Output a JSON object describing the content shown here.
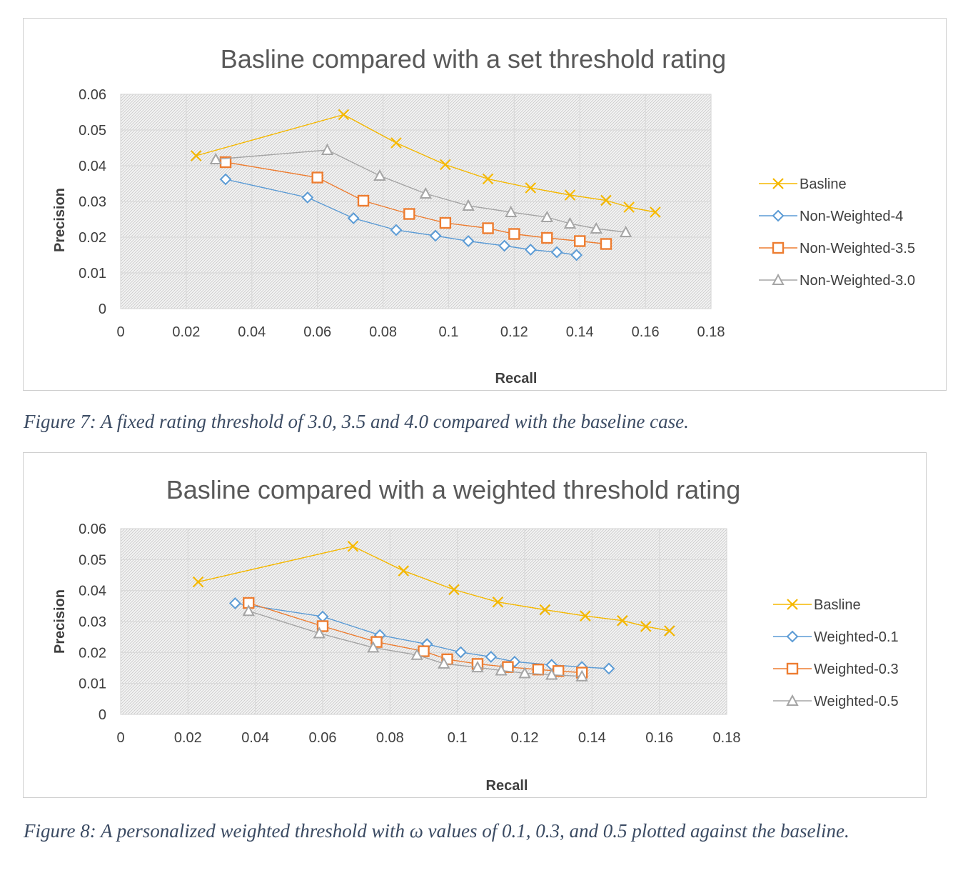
{
  "charts": [
    {
      "chart_data": {
        "type": "scatter",
        "title": "Basline compared with a set threshold rating",
        "xlabel": "Recall",
        "ylabel": "Precision",
        "xlim": [
          0,
          0.18
        ],
        "ylim": [
          0,
          0.06
        ],
        "xticks": [
          "0",
          "0.02",
          "0.04",
          "0.06",
          "0.08",
          "0.1",
          "0.12",
          "0.14",
          "0.16",
          "0.18"
        ],
        "yticks": [
          "0",
          "0.01",
          "0.02",
          "0.03",
          "0.04",
          "0.05",
          "0.06"
        ],
        "grid": true,
        "legend_position": "right",
        "series": [
          {
            "name": "Basline",
            "color": "#f5b800",
            "marker": "x",
            "x": [
              0.023,
              0.068,
              0.084,
              0.099,
              0.112,
              0.125,
              0.137,
              0.148,
              0.155,
              0.163
            ],
            "y": [
              0.0428,
              0.0543,
              0.0464,
              0.0403,
              0.0363,
              0.0338,
              0.0318,
              0.0303,
              0.0284,
              0.027
            ]
          },
          {
            "name": "Non-Weighted-4",
            "color": "#5b9bd5",
            "marker": "diamond",
            "x": [
              0.032,
              0.057,
              0.071,
              0.084,
              0.096,
              0.106,
              0.117,
              0.125,
              0.133,
              0.139
            ],
            "y": [
              0.0362,
              0.0311,
              0.0253,
              0.022,
              0.0204,
              0.0189,
              0.0176,
              0.0165,
              0.0158,
              0.015
            ]
          },
          {
            "name": "Non-Weighted-3.5",
            "color": "#ed7d31",
            "marker": "square",
            "x": [
              0.032,
              0.06,
              0.074,
              0.088,
              0.099,
              0.112,
              0.12,
              0.13,
              0.14,
              0.148
            ],
            "y": [
              0.041,
              0.0367,
              0.0302,
              0.0265,
              0.024,
              0.0225,
              0.0209,
              0.0198,
              0.0189,
              0.0181
            ]
          },
          {
            "name": "Non-Weighted-3.0",
            "color": "#a5a5a5",
            "marker": "triangle",
            "x": [
              0.029,
              0.063,
              0.079,
              0.093,
              0.106,
              0.119,
              0.13,
              0.137,
              0.145,
              0.154
            ],
            "y": [
              0.0418,
              0.0444,
              0.0372,
              0.0322,
              0.0288,
              0.027,
              0.0256,
              0.0238,
              0.0224,
              0.0214
            ]
          }
        ]
      },
      "caption": "Figure 7: A fixed rating threshold of 3.0, 3.5 and 4.0 compared with the baseline case."
    },
    {
      "chart_data": {
        "type": "scatter",
        "title": "Basline compared with a weighted threshold rating",
        "xlabel": "Recall",
        "ylabel": "Precision",
        "xlim": [
          0,
          0.18
        ],
        "ylim": [
          0,
          0.06
        ],
        "xticks": [
          "0",
          "0.02",
          "0.04",
          "0.06",
          "0.08",
          "0.1",
          "0.12",
          "0.14",
          "0.16",
          "0.18"
        ],
        "yticks": [
          "0",
          "0.01",
          "0.02",
          "0.03",
          "0.04",
          "0.05",
          "0.06"
        ],
        "grid": true,
        "legend_position": "right",
        "series": [
          {
            "name": "Basline",
            "color": "#f5b800",
            "marker": "x",
            "x": [
              0.023,
              0.069,
              0.084,
              0.099,
              0.112,
              0.126,
              0.138,
              0.149,
              0.156,
              0.163
            ],
            "y": [
              0.0428,
              0.0543,
              0.0464,
              0.0403,
              0.0363,
              0.0338,
              0.0318,
              0.0303,
              0.0284,
              0.027
            ]
          },
          {
            "name": "Weighted-0.1",
            "color": "#5b9bd5",
            "marker": "diamond",
            "x": [
              0.034,
              0.06,
              0.077,
              0.091,
              0.101,
              0.11,
              0.117,
              0.128,
              0.137,
              0.145
            ],
            "y": [
              0.0359,
              0.0316,
              0.0256,
              0.0227,
              0.0201,
              0.0186,
              0.017,
              0.016,
              0.0153,
              0.0148
            ]
          },
          {
            "name": "Weighted-0.3",
            "color": "#ed7d31",
            "marker": "square",
            "x": [
              0.038,
              0.06,
              0.076,
              0.09,
              0.097,
              0.106,
              0.115,
              0.124,
              0.13,
              0.137
            ],
            "y": [
              0.036,
              0.0285,
              0.0234,
              0.0204,
              0.0178,
              0.0163,
              0.0153,
              0.0145,
              0.014,
              0.0135
            ]
          },
          {
            "name": "Weighted-0.5",
            "color": "#a5a5a5",
            "marker": "triangle",
            "x": [
              0.038,
              0.059,
              0.075,
              0.088,
              0.096,
              0.106,
              0.113,
              0.12,
              0.128,
              0.137
            ],
            "y": [
              0.0334,
              0.0262,
              0.0216,
              0.0192,
              0.0164,
              0.0152,
              0.0142,
              0.0133,
              0.0128,
              0.0123
            ]
          }
        ]
      },
      "caption": "Figure 8: A personalized weighted threshold with ω values of 0.1, 0.3, and 0.5 plotted against the baseline."
    }
  ]
}
